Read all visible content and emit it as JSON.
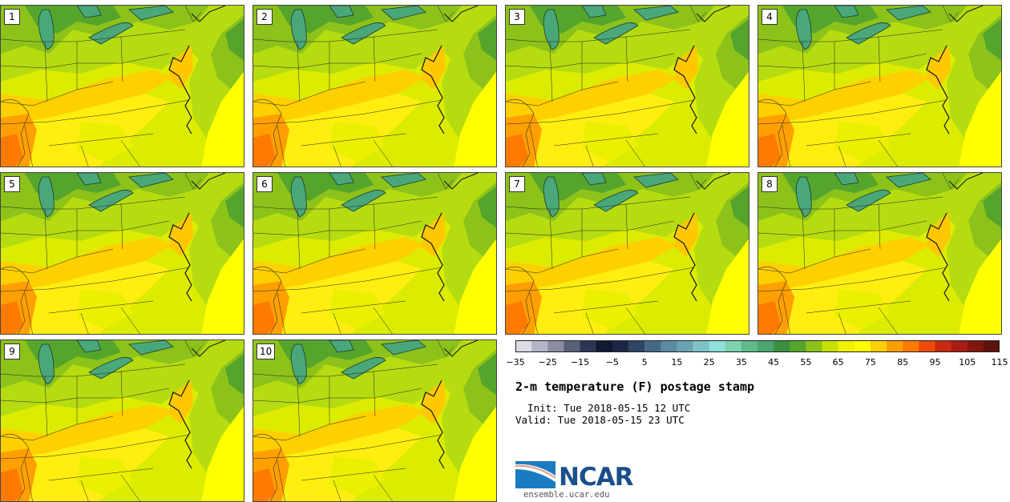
{
  "panels": [
    "1",
    "2",
    "3",
    "4",
    "5",
    "6",
    "7",
    "8",
    "9",
    "10"
  ],
  "colorbar": {
    "ticks": [
      "−35",
      "−25",
      "−15",
      "−5",
      "5",
      "15",
      "25",
      "35",
      "45",
      "55",
      "65",
      "75",
      "85",
      "95",
      "105",
      "115"
    ],
    "colors": [
      "#dcdce4",
      "#b4b4c8",
      "#8c8ca0",
      "#5a5f78",
      "#2d3555",
      "#111833",
      "#1b2744",
      "#2d4566",
      "#456a86",
      "#5d8aa0",
      "#6aa4b2",
      "#7cc2c8",
      "#8fe0d8",
      "#7ed2b0",
      "#5fba8c",
      "#4aa66e",
      "#3a9040",
      "#55a52c",
      "#8cc21a",
      "#c8e000",
      "#f2f200",
      "#ffff00",
      "#ffd000",
      "#ffa000",
      "#ff7a00",
      "#ee4a0a",
      "#c82a10",
      "#a81c12",
      "#82160e",
      "#5e130c"
    ]
  },
  "title": "2-m temperature (F) postage stamp",
  "init_line": "  Init: Tue 2018-05-15 12 UTC",
  "valid_line": "Valid: Tue 2018-05-15 23 UTC",
  "logo_text": "NCAR",
  "url": "ensemble.ucar.edu",
  "colors": {
    "lake": "#4aa77a",
    "ocean_far": "#ffff00",
    "land_warm": "#ffa000"
  }
}
